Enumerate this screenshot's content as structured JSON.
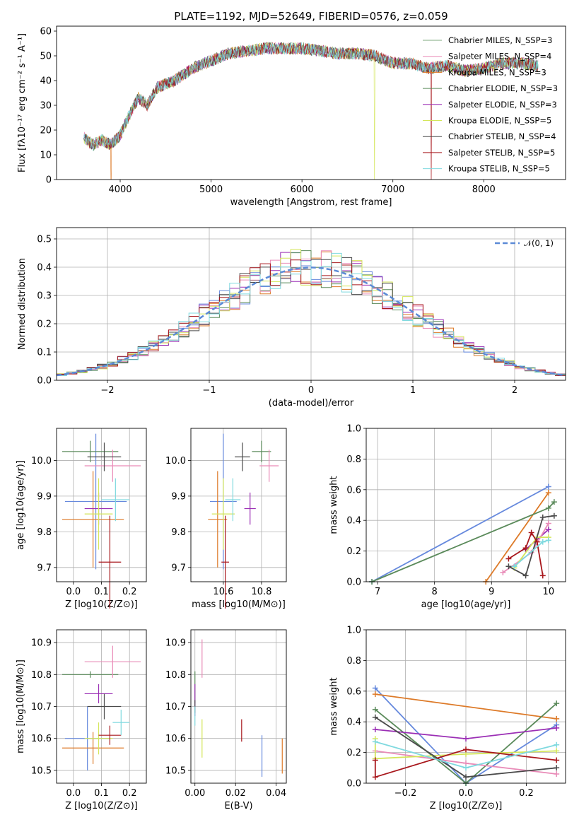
{
  "title": "PLATE=1192, MJD=52649, FIBERID=0576, z=0.059",
  "colors": {
    "blue": "#6689dd",
    "orange": "#dd7a28",
    "green": "#5a8a5a",
    "purple": "#9b2fb5",
    "pink": "#e98bb8",
    "yellow": "#d4e65a",
    "dark": "#4a4a4a",
    "red": "#a8171c",
    "cyan": "#7fd9df",
    "normal": "#5b8ad6"
  },
  "chart_data": [
    {
      "type": "line",
      "name": "spectrum",
      "xlabel": "wavelength [Angstrom, rest frame]",
      "ylabel": "Flux [fλ10⁻¹⁷ erg cm⁻² s⁻¹ A⁻¹]",
      "xlim": [
        3300,
        8900
      ],
      "ylim": [
        0,
        62
      ],
      "xticks": [
        4000,
        5000,
        6000,
        7000,
        8000
      ],
      "yticks": [
        0,
        10,
        20,
        30,
        40,
        50,
        60
      ],
      "grid": false,
      "legend_position": "top-right",
      "series": [
        {
          "name": "Chabrier MILES, N_SSP=3"
        },
        {
          "name": "Salpeter MILES, N_SSP=4"
        },
        {
          "name": "Kroupa MILES, N_SSP=3"
        },
        {
          "name": "Chabrier ELODIE, N_SSP=3"
        },
        {
          "name": "Salpeter ELODIE, N_SSP=3"
        },
        {
          "name": "Kroupa ELODIE, N_SSP=5"
        },
        {
          "name": "Chabrier STELIB, N_SSP=4"
        },
        {
          "name": "Salpeter STELIB, N_SSP=5"
        },
        {
          "name": "Kroupa STELIB, N_SSP=5"
        }
      ],
      "x": [
        3600,
        3700,
        3800,
        3900,
        4000,
        4100,
        4200,
        4300,
        4400,
        4600,
        4800,
        5000,
        5200,
        5400,
        5600,
        5800,
        6000,
        6200,
        6400,
        6600,
        6800,
        7000,
        7200,
        7400,
        7600,
        7800,
        8000,
        8200,
        8400,
        8600
      ],
      "y": [
        17,
        14,
        16,
        14,
        18,
        26,
        33,
        30,
        37,
        40,
        45,
        48,
        51,
        52,
        53,
        53,
        53,
        52,
        51,
        51,
        50,
        47,
        47,
        45,
        46,
        44,
        45,
        47,
        47,
        46
      ],
      "dropouts": [
        {
          "x": 3900,
          "series": 2
        },
        {
          "x": 6800,
          "series": 5
        },
        {
          "x": 7420,
          "series": 7
        }
      ]
    },
    {
      "type": "histogram",
      "name": "residuals",
      "xlabel": "(data-model)/error",
      "ylabel": "Normed distribution",
      "xlim": [
        -2.5,
        2.5
      ],
      "ylim": [
        0,
        0.54
      ],
      "xticks": [
        -2,
        -1,
        0,
        1,
        2
      ],
      "yticks": [
        0.0,
        0.1,
        0.2,
        0.3,
        0.4,
        0.5
      ],
      "grid": true,
      "legend": "𝒩(0, 1)",
      "legend_position": "top-right",
      "bin_width": 0.1,
      "model": "normal(0,1)"
    },
    {
      "type": "errorbar",
      "name": "age_vs_Z",
      "xlabel": "Z [log10(Z/Z⊙)]",
      "ylabel": "age [log10(age/yr)]",
      "xlim": [
        -0.06,
        0.26
      ],
      "ylim": [
        9.66,
        10.09
      ],
      "xticks": [
        0.0,
        0.1,
        0.2
      ],
      "yticks": [
        9.7,
        9.8,
        9.9,
        10.0
      ],
      "grid": true,
      "points": [
        {
          "x": 0.08,
          "xerr": 0.11,
          "y": 9.885,
          "yerr": 0.19,
          "c": "blue"
        },
        {
          "x": 0.07,
          "xerr": 0.11,
          "y": 9.835,
          "yerr": 0.135,
          "c": "orange"
        },
        {
          "x": 0.06,
          "xerr": 0.1,
          "y": 10.025,
          "yerr": 0.03,
          "c": "green"
        },
        {
          "x": 0.09,
          "xerr": 0.05,
          "y": 9.865,
          "yerr": 0.045,
          "c": "purple"
        },
        {
          "x": 0.14,
          "xerr": 0.1,
          "y": 9.985,
          "yerr": 0.045,
          "c": "pink"
        },
        {
          "x": 0.09,
          "xerr": 0.05,
          "y": 9.85,
          "yerr": 0.1,
          "c": "yellow"
        },
        {
          "x": 0.11,
          "xerr": 0.06,
          "y": 10.01,
          "yerr": 0.04,
          "c": "dark"
        },
        {
          "x": 0.13,
          "xerr": 0.04,
          "y": 9.715,
          "yerr": 0.13,
          "c": "red"
        },
        {
          "x": 0.15,
          "xerr": 0.05,
          "y": 9.89,
          "yerr": 0.06,
          "c": "cyan"
        }
      ]
    },
    {
      "type": "errorbar",
      "name": "age_vs_mass",
      "xlabel": "mass [log10(M/M⊙)]",
      "ylabel": "",
      "xlim": [
        10.43,
        10.93
      ],
      "ylim": [
        9.66,
        10.09
      ],
      "xticks": [
        10.6,
        10.8
      ],
      "yticks": [
        9.7,
        9.8,
        9.9,
        10.0
      ],
      "grid": true,
      "points": [
        {
          "x": 10.6,
          "xerr": 0.07,
          "y": 9.885,
          "yerr": 0.19,
          "c": "blue"
        },
        {
          "x": 10.57,
          "xerr": 0.05,
          "y": 9.835,
          "yerr": 0.135,
          "c": "orange"
        },
        {
          "x": 10.8,
          "xerr": 0.05,
          "y": 10.025,
          "yerr": 0.03,
          "c": "green"
        },
        {
          "x": 10.74,
          "xerr": 0.03,
          "y": 9.865,
          "yerr": 0.045,
          "c": "purple"
        },
        {
          "x": 10.84,
          "xerr": 0.05,
          "y": 9.985,
          "yerr": 0.045,
          "c": "pink"
        },
        {
          "x": 10.6,
          "xerr": 0.06,
          "y": 9.85,
          "yerr": 0.1,
          "c": "yellow"
        },
        {
          "x": 10.7,
          "xerr": 0.04,
          "y": 10.01,
          "yerr": 0.04,
          "c": "dark"
        },
        {
          "x": 10.61,
          "xerr": 0.02,
          "y": 9.715,
          "yerr": 0.13,
          "c": "red"
        },
        {
          "x": 10.65,
          "xerr": 0.04,
          "y": 9.89,
          "yerr": 0.06,
          "c": "cyan"
        }
      ]
    },
    {
      "type": "line",
      "name": "mass_weight_vs_age",
      "xlabel": "age [log10(age/yr)]",
      "ylabel": "mass weight",
      "xlim": [
        6.8,
        10.3
      ],
      "ylim": [
        0,
        1.0
      ],
      "xticks": [
        7,
        8,
        9,
        10
      ],
      "yticks": [
        0.0,
        0.2,
        0.4,
        0.6,
        0.8,
        1.0
      ],
      "grid": true,
      "series": [
        {
          "c": "blue",
          "points": [
            [
              6.9,
              0.0
            ],
            [
              10.0,
              0.62
            ]
          ]
        },
        {
          "c": "orange",
          "points": [
            [
              8.9,
              0.0
            ],
            [
              10.0,
              0.58
            ]
          ]
        },
        {
          "c": "green",
          "points": [
            [
              6.9,
              0.0
            ],
            [
              10.0,
              0.48
            ],
            [
              10.1,
              0.52
            ]
          ]
        },
        {
          "c": "purple",
          "points": [
            [
              9.6,
              0.21
            ],
            [
              10.0,
              0.34
            ]
          ]
        },
        {
          "c": "pink",
          "points": [
            [
              9.2,
              0.06
            ],
            [
              9.7,
              0.19
            ],
            [
              10.0,
              0.38
            ]
          ]
        },
        {
          "c": "yellow",
          "points": [
            [
              9.4,
              0.09
            ],
            [
              9.8,
              0.29
            ],
            [
              10.0,
              0.29
            ]
          ]
        },
        {
          "c": "dark",
          "points": [
            [
              9.3,
              0.1
            ],
            [
              9.6,
              0.04
            ],
            [
              9.9,
              0.42
            ],
            [
              10.1,
              0.43
            ]
          ]
        },
        {
          "c": "red",
          "points": [
            [
              9.3,
              0.15
            ],
            [
              9.6,
              0.22
            ],
            [
              9.7,
              0.32
            ],
            [
              9.8,
              0.26
            ],
            [
              9.9,
              0.04
            ]
          ]
        },
        {
          "c": "cyan",
          "points": [
            [
              9.4,
              0.1
            ],
            [
              9.9,
              0.26
            ],
            [
              10.0,
              0.27
            ]
          ]
        }
      ]
    },
    {
      "type": "errorbar",
      "name": "mass_vs_Z",
      "xlabel": "Z [log10(Z/Z⊙)]",
      "ylabel": "mass [log10(M/M⊙)]",
      "xlim": [
        -0.06,
        0.26
      ],
      "ylim": [
        10.46,
        10.94
      ],
      "xticks": [
        0.0,
        0.1,
        0.2
      ],
      "yticks": [
        10.5,
        10.6,
        10.7,
        10.8,
        10.9
      ],
      "grid": true,
      "points": [
        {
          "x": 0.05,
          "xerr": 0.08,
          "y": 10.6,
          "yerr": 0.1,
          "c": "blue"
        },
        {
          "x": 0.07,
          "xerr": 0.11,
          "y": 10.57,
          "yerr": 0.05,
          "c": "orange"
        },
        {
          "x": 0.06,
          "xerr": 0.1,
          "y": 10.8,
          "yerr": 0.01,
          "c": "green"
        },
        {
          "x": 0.09,
          "xerr": 0.05,
          "y": 10.74,
          "yerr": 0.03,
          "c": "purple"
        },
        {
          "x": 0.14,
          "xerr": 0.1,
          "y": 10.84,
          "yerr": 0.05,
          "c": "pink"
        },
        {
          "x": 0.09,
          "xerr": 0.05,
          "y": 10.6,
          "yerr": 0.05,
          "c": "yellow"
        },
        {
          "x": 0.11,
          "xerr": 0.06,
          "y": 10.7,
          "yerr": 0.04,
          "c": "dark"
        },
        {
          "x": 0.13,
          "xerr": 0.04,
          "y": 10.61,
          "yerr": 0.03,
          "c": "red"
        },
        {
          "x": 0.17,
          "xerr": 0.03,
          "y": 10.65,
          "yerr": 0.04,
          "c": "cyan"
        }
      ]
    },
    {
      "type": "errorbar",
      "name": "mass_vs_EBV",
      "xlabel": "E(B-V)",
      "ylabel": "",
      "xlim": [
        -0.002,
        0.045
      ],
      "ylim": [
        10.46,
        10.94
      ],
      "xticks": [
        0.0,
        0.02,
        0.04
      ],
      "yticks": [
        10.5,
        10.6,
        10.7,
        10.8,
        10.9
      ],
      "grid": true,
      "points": [
        {
          "x": 0.033,
          "xerr": 0,
          "y": 10.545,
          "yerr": 0.065,
          "c": "blue"
        },
        {
          "x": 0.043,
          "xerr": 0,
          "y": 10.545,
          "yerr": 0.055,
          "c": "orange"
        },
        {
          "x": 0.0,
          "xerr": 0,
          "y": 10.76,
          "yerr": 0.05,
          "c": "green"
        },
        {
          "x": 0.0,
          "xerr": 0,
          "y": 10.72,
          "yerr": 0.05,
          "c": "purple"
        },
        {
          "x": 0.0035,
          "xerr": 0,
          "y": 10.85,
          "yerr": 0.06,
          "c": "pink"
        },
        {
          "x": 0.0035,
          "xerr": 0,
          "y": 10.6,
          "yerr": 0.06,
          "c": "yellow"
        },
        {
          "x": 0.0,
          "xerr": 0,
          "y": 10.7,
          "yerr": 0.02,
          "c": "dark"
        },
        {
          "x": 0.023,
          "xerr": 0,
          "y": 10.625,
          "yerr": 0.035,
          "c": "red"
        },
        {
          "x": 0.0,
          "xerr": 0,
          "y": 10.67,
          "yerr": 0.03,
          "c": "cyan"
        }
      ]
    },
    {
      "type": "line",
      "name": "mass_weight_vs_Z",
      "xlabel": "Z [log10(Z/Z⊙)]",
      "ylabel": "mass weight",
      "xlim": [
        -0.33,
        0.33
      ],
      "ylim": [
        0,
        1.0
      ],
      "xticks": [
        -0.2,
        0.0,
        0.2
      ],
      "yticks": [
        0.0,
        0.2,
        0.4,
        0.6,
        0.8,
        1.0
      ],
      "grid": true,
      "series": [
        {
          "c": "blue",
          "points": [
            [
              -0.3,
              0.62
            ],
            [
              0.0,
              0.0
            ],
            [
              0.3,
              0.38
            ]
          ]
        },
        {
          "c": "orange",
          "points": [
            [
              -0.3,
              0.58
            ],
            [
              0.3,
              0.42
            ]
          ]
        },
        {
          "c": "green",
          "points": [
            [
              -0.3,
              0.48
            ],
            [
              0.0,
              0.0
            ],
            [
              0.3,
              0.52
            ]
          ]
        },
        {
          "c": "purple",
          "points": [
            [
              -0.3,
              0.35
            ],
            [
              0.0,
              0.29
            ],
            [
              0.3,
              0.36
            ]
          ]
        },
        {
          "c": "pink",
          "points": [
            [
              -0.3,
              0.21
            ],
            [
              0.0,
              0.13
            ],
            [
              0.3,
              0.06
            ]
          ]
        },
        {
          "c": "yellow",
          "points": [
            [
              -0.3,
              0.29
            ],
            [
              -0.3,
              0.16
            ],
            [
              0.0,
              0.19
            ],
            [
              0.3,
              0.21
            ]
          ]
        },
        {
          "c": "dark",
          "points": [
            [
              -0.3,
              0.43
            ],
            [
              0.0,
              0.04
            ],
            [
              0.3,
              0.1
            ]
          ]
        },
        {
          "c": "red",
          "points": [
            [
              -0.3,
              0.15
            ],
            [
              -0.3,
              0.04
            ],
            [
              0.0,
              0.22
            ],
            [
              0.3,
              0.15
            ]
          ]
        },
        {
          "c": "cyan",
          "points": [
            [
              -0.3,
              0.27
            ],
            [
              0.0,
              0.1
            ],
            [
              0.3,
              0.25
            ]
          ]
        }
      ]
    }
  ]
}
